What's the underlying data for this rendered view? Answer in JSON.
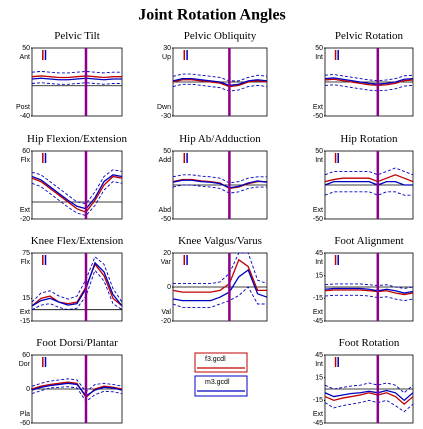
{
  "title": "Joint Rotation Angles",
  "chart_data": [
    {
      "type": "line",
      "title": "Pelvic Tilt",
      "ylabel_top": "Ant",
      "ylabel_bottom": "Post",
      "x": [
        0,
        10,
        20,
        30,
        40,
        50,
        60,
        70,
        80,
        90,
        100
      ],
      "xlim": [
        0,
        100
      ],
      "ylim": [
        -40,
        50
      ],
      "yticks": [
        -40,
        50
      ],
      "events": [
        {
          "x": 12,
          "color": "#c00000"
        },
        {
          "x": 15,
          "color": "#0000c0"
        }
      ],
      "vline": {
        "x": 60,
        "color": "#8b008b"
      },
      "series": [
        {
          "name": "f3.gcdl",
          "color": "#c00000",
          "values": [
            12,
            13,
            12,
            11,
            11,
            12,
            13,
            12,
            11,
            12,
            12
          ]
        },
        {
          "name": "m3.gcdl",
          "color": "#0000c0",
          "values": [
            9,
            10,
            9,
            8,
            8,
            9,
            10,
            9,
            8,
            9,
            9
          ]
        },
        {
          "color": "#0000c0",
          "dash": true,
          "values": [
            18,
            19,
            18,
            17,
            17,
            18,
            19,
            18,
            17,
            18,
            18
          ]
        },
        {
          "color": "#0000c0",
          "dash": true,
          "values": [
            3,
            4,
            3,
            2,
            2,
            3,
            4,
            3,
            2,
            3,
            3
          ]
        }
      ]
    },
    {
      "type": "line",
      "title": "Pelvic Obliquity",
      "ylabel_top": "Up",
      "ylabel_bottom": "Dwn",
      "x": [
        0,
        10,
        20,
        30,
        40,
        50,
        60,
        70,
        80,
        90,
        100
      ],
      "xlim": [
        0,
        100
      ],
      "ylim": [
        -30,
        30
      ],
      "yticks": [
        -30,
        30
      ],
      "events": [
        {
          "x": 12,
          "color": "#c00000"
        },
        {
          "x": 15,
          "color": "#0000c0"
        }
      ],
      "vline": {
        "x": 60,
        "color": "#8b008b"
      },
      "series": [
        {
          "color": "#c00000",
          "values": [
            0,
            2,
            2,
            1,
            0,
            -1,
            -4,
            -3,
            0,
            1,
            0
          ]
        },
        {
          "color": "#0000c0",
          "values": [
            1,
            3,
            3,
            2,
            1,
            0,
            -3,
            -2,
            1,
            2,
            1
          ]
        },
        {
          "color": "#0000c0",
          "dash": true,
          "values": [
            5,
            7,
            7,
            6,
            5,
            4,
            1,
            1,
            4,
            6,
            5
          ]
        },
        {
          "color": "#0000c0",
          "dash": true,
          "values": [
            -4,
            -2,
            -2,
            -3,
            -4,
            -5,
            -8,
            -7,
            -4,
            -3,
            -4
          ]
        }
      ]
    },
    {
      "type": "line",
      "title": "Pelvic Rotation",
      "ylabel_top": "Int",
      "ylabel_bottom": "Ext",
      "x": [
        0,
        10,
        20,
        30,
        40,
        50,
        60,
        70,
        80,
        90,
        100
      ],
      "xlim": [
        0,
        100
      ],
      "ylim": [
        -50,
        50
      ],
      "yticks": [
        -50,
        50
      ],
      "events": [
        {
          "x": 12,
          "color": "#c00000"
        },
        {
          "x": 15,
          "color": "#0000c0"
        }
      ],
      "vline": {
        "x": 60,
        "color": "#8b008b"
      },
      "series": [
        {
          "color": "#c00000",
          "values": [
            3,
            4,
            2,
            0,
            -2,
            -4,
            -5,
            -4,
            -2,
            2,
            3
          ]
        },
        {
          "color": "#0000c0",
          "values": [
            5,
            6,
            4,
            2,
            0,
            -2,
            -3,
            -2,
            0,
            4,
            5
          ]
        },
        {
          "color": "#0000c0",
          "dash": true,
          "values": [
            10,
            11,
            9,
            7,
            5,
            3,
            2,
            3,
            5,
            9,
            10
          ]
        },
        {
          "color": "#0000c0",
          "dash": true,
          "values": [
            -5,
            -4,
            -6,
            -8,
            -10,
            -12,
            -13,
            -12,
            -10,
            -6,
            -5
          ]
        }
      ]
    },
    {
      "type": "line",
      "title": "Hip Flexion/Extension",
      "ylabel_top": "Flx",
      "ylabel_bottom": "Ext",
      "x": [
        0,
        10,
        20,
        30,
        40,
        50,
        60,
        70,
        80,
        90,
        100
      ],
      "xlim": [
        0,
        100
      ],
      "ylim": [
        -20,
        60
      ],
      "yticks": [
        -20,
        60
      ],
      "events": [
        {
          "x": 12,
          "color": "#c00000"
        },
        {
          "x": 15,
          "color": "#0000c0"
        }
      ],
      "vline": {
        "x": 60,
        "color": "#8b008b"
      },
      "series": [
        {
          "color": "#c00000",
          "values": [
            28,
            24,
            16,
            8,
            0,
            -8,
            -12,
            2,
            20,
            30,
            28
          ]
        },
        {
          "color": "#0000c0",
          "values": [
            30,
            26,
            18,
            10,
            2,
            -5,
            -8,
            5,
            24,
            32,
            30
          ]
        },
        {
          "color": "#0000c0",
          "dash": true,
          "values": [
            35,
            32,
            24,
            16,
            8,
            0,
            -2,
            12,
            30,
            38,
            36
          ]
        },
        {
          "color": "#0000c0",
          "dash": true,
          "values": [
            22,
            18,
            10,
            2,
            -6,
            -13,
            -16,
            -4,
            14,
            24,
            22
          ]
        }
      ]
    },
    {
      "type": "line",
      "title": "Hip Ab/Adduction",
      "ylabel_top": "Add",
      "ylabel_bottom": "Abd",
      "x": [
        0,
        10,
        20,
        30,
        40,
        50,
        60,
        70,
        80,
        90,
        100
      ],
      "xlim": [
        0,
        100
      ],
      "ylim": [
        -50,
        50
      ],
      "yticks": [
        -50,
        50
      ],
      "events": [
        {
          "x": 12,
          "color": "#c00000"
        },
        {
          "x": 15,
          "color": "#0000c0"
        }
      ],
      "vline": {
        "x": 60,
        "color": "#8b008b"
      },
      "series": [
        {
          "color": "#c00000",
          "values": [
            5,
            8,
            8,
            6,
            5,
            3,
            -5,
            -3,
            2,
            5,
            5
          ]
        },
        {
          "color": "#0000c0",
          "values": [
            4,
            7,
            7,
            5,
            4,
            2,
            -4,
            -2,
            3,
            6,
            4
          ]
        },
        {
          "color": "#0000c0",
          "dash": true,
          "values": [
            12,
            15,
            15,
            13,
            12,
            10,
            3,
            5,
            10,
            12,
            12
          ]
        },
        {
          "color": "#0000c0",
          "dash": true,
          "values": [
            -3,
            0,
            0,
            -2,
            -3,
            -5,
            -12,
            -10,
            -5,
            -3,
            -3
          ]
        }
      ]
    },
    {
      "type": "line",
      "title": "Hip Rotation",
      "ylabel_top": "Int",
      "ylabel_bottom": "Ext",
      "x": [
        0,
        10,
        20,
        30,
        40,
        50,
        60,
        70,
        80,
        90,
        100
      ],
      "xlim": [
        0,
        100
      ],
      "ylim": [
        -50,
        50
      ],
      "yticks": [
        -50,
        50
      ],
      "events": [
        {
          "x": 12,
          "color": "#c00000"
        },
        {
          "x": 15,
          "color": "#0000c0"
        }
      ],
      "vline": {
        "x": 60,
        "color": "#8b008b"
      },
      "series": [
        {
          "color": "#c00000",
          "values": [
            5,
            8,
            10,
            10,
            10,
            10,
            5,
            10,
            15,
            10,
            5
          ]
        },
        {
          "color": "#0000c0",
          "values": [
            0,
            5,
            5,
            5,
            5,
            5,
            0,
            5,
            5,
            0,
            0
          ]
        },
        {
          "color": "#0000c0",
          "dash": true,
          "values": [
            15,
            20,
            20,
            20,
            20,
            20,
            15,
            20,
            25,
            20,
            15
          ]
        },
        {
          "color": "#0000c0",
          "dash": true,
          "values": [
            -15,
            -10,
            -10,
            -10,
            -10,
            -10,
            -15,
            -10,
            -10,
            -15,
            -15
          ]
        }
      ]
    },
    {
      "type": "line",
      "title": "Knee Flex/Extension",
      "ylabel_top": "Flx",
      "ylabel_bottom": "Ext",
      "x": [
        0,
        10,
        20,
        30,
        40,
        50,
        60,
        70,
        80,
        90,
        100
      ],
      "xlim": [
        0,
        100
      ],
      "ylim": [
        -15,
        75
      ],
      "yticks": [
        -15,
        15,
        75
      ],
      "events": [
        {
          "x": 12,
          "color": "#c00000"
        },
        {
          "x": 15,
          "color": "#0000c0"
        }
      ],
      "vline": {
        "x": 60,
        "color": "#8b008b"
      },
      "series": [
        {
          "color": "#c00000",
          "values": [
            5,
            15,
            18,
            10,
            8,
            10,
            30,
            60,
            45,
            15,
            5
          ]
        },
        {
          "color": "#0000c0",
          "values": [
            5,
            12,
            15,
            10,
            6,
            8,
            28,
            62,
            50,
            20,
            5
          ]
        },
        {
          "color": "#0000c0",
          "dash": true,
          "values": [
            10,
            22,
            25,
            18,
            14,
            18,
            40,
            70,
            60,
            28,
            10
          ]
        },
        {
          "color": "#0000c0",
          "dash": true,
          "values": [
            0,
            6,
            8,
            3,
            0,
            2,
            18,
            52,
            38,
            8,
            0
          ]
        }
      ]
    },
    {
      "type": "line",
      "title": "Knee Valgus/Varus",
      "ylabel_top": "Var",
      "ylabel_bottom": "Val",
      "x": [
        0,
        10,
        20,
        30,
        40,
        50,
        60,
        70,
        80,
        90,
        100
      ],
      "xlim": [
        0,
        100
      ],
      "ylim": [
        -20,
        20
      ],
      "yticks": [
        -20,
        0,
        20
      ],
      "events": [
        {
          "x": 12,
          "color": "#c00000"
        },
        {
          "x": 15,
          "color": "#0000c0"
        }
      ],
      "vline": {
        "x": 60,
        "color": "#8b008b"
      },
      "series": [
        {
          "color": "#c00000",
          "values": [
            -2,
            -3,
            -3,
            -3,
            -3,
            -2,
            2,
            16,
            12,
            -2,
            -2
          ]
        },
        {
          "color": "#0000c0",
          "values": [
            -7,
            -8,
            -8,
            -8,
            -8,
            -6,
            -3,
            6,
            10,
            -4,
            -6
          ]
        },
        {
          "color": "#0000c0",
          "dash": true,
          "values": [
            2,
            2,
            2,
            2,
            2,
            3,
            8,
            20,
            20,
            4,
            2
          ]
        },
        {
          "color": "#0000c0",
          "dash": true,
          "values": [
            -10,
            -12,
            -12,
            -12,
            -12,
            -10,
            -8,
            -5,
            0,
            -10,
            -10
          ]
        }
      ]
    },
    {
      "type": "line",
      "title": "Foot Alignment",
      "ylabel_top": "Int",
      "ylabel_bottom": "Ext",
      "x": [
        0,
        10,
        20,
        30,
        40,
        50,
        60,
        70,
        80,
        90,
        100
      ],
      "xlim": [
        0,
        100
      ],
      "ylim": [
        -45,
        45
      ],
      "yticks": [
        -45,
        -15,
        15,
        45
      ],
      "events": [
        {
          "x": 12,
          "color": "#c00000"
        },
        {
          "x": 15,
          "color": "#0000c0"
        }
      ],
      "vline": {
        "x": 60,
        "color": "#8b008b"
      },
      "series": [
        {
          "color": "#c00000",
          "values": [
            -5,
            -4,
            -4,
            -4,
            -4,
            -5,
            -6,
            -5,
            -8,
            -10,
            -8
          ]
        },
        {
          "color": "#0000c0",
          "values": [
            -3,
            -2,
            -2,
            -2,
            -2,
            -3,
            -5,
            -3,
            -5,
            -8,
            -6
          ]
        },
        {
          "color": "#0000c0",
          "dash": true,
          "values": [
            3,
            4,
            4,
            4,
            4,
            3,
            2,
            3,
            0,
            -2,
            0
          ]
        },
        {
          "color": "#0000c0",
          "dash": true,
          "values": [
            -12,
            -11,
            -11,
            -11,
            -11,
            -12,
            -14,
            -13,
            -16,
            -18,
            -16
          ]
        }
      ]
    },
    {
      "type": "line",
      "title": "Foot Dorsi/Plantar",
      "ylabel_top": "Dor",
      "ylabel_bottom": "Pla",
      "x": [
        0,
        10,
        20,
        30,
        40,
        50,
        60,
        70,
        80,
        90,
        100
      ],
      "xlim": [
        0,
        100
      ],
      "ylim": [
        -60,
        60
      ],
      "yticks": [
        -60,
        0,
        60
      ],
      "events": [
        {
          "x": 12,
          "color": "#c00000"
        },
        {
          "x": 15,
          "color": "#0000c0"
        }
      ],
      "vline": {
        "x": 60,
        "color": "#8b008b"
      },
      "series": [
        {
          "color": "#c00000",
          "values": [
            0,
            5,
            8,
            10,
            12,
            10,
            -15,
            0,
            5,
            3,
            0
          ]
        },
        {
          "color": "#0000c0",
          "values": [
            -2,
            3,
            6,
            8,
            10,
            8,
            -12,
            -2,
            3,
            2,
            -2
          ]
        },
        {
          "color": "#0000c0",
          "dash": true,
          "values": [
            5,
            10,
            14,
            16,
            18,
            16,
            -5,
            8,
            10,
            8,
            5
          ]
        },
        {
          "color": "#0000c0",
          "dash": true,
          "values": [
            -8,
            -3,
            2,
            3,
            4,
            2,
            -22,
            -10,
            -4,
            -5,
            -8
          ]
        }
      ]
    },
    {
      "type": "line",
      "title": "Foot Rotation",
      "ylabel_top": "Int",
      "ylabel_bottom": "Ext",
      "x": [
        0,
        10,
        20,
        30,
        40,
        50,
        60,
        70,
        80,
        90,
        100
      ],
      "xlim": [
        0,
        100
      ],
      "ylim": [
        -45,
        45
      ],
      "yticks": [
        -45,
        -15,
        15,
        45
      ],
      "events": [
        {
          "x": 12,
          "color": "#c00000"
        },
        {
          "x": 15,
          "color": "#0000c0"
        }
      ],
      "vline": {
        "x": 60,
        "color": "#8b008b"
      },
      "series": [
        {
          "color": "#c00000",
          "values": [
            -10,
            -15,
            -12,
            -10,
            -8,
            -5,
            -8,
            -5,
            -10,
            -20,
            -10
          ]
        },
        {
          "color": "#0000c0",
          "values": [
            -5,
            -10,
            -8,
            -6,
            -5,
            -3,
            -5,
            -2,
            -5,
            -15,
            -5
          ]
        },
        {
          "color": "#0000c0",
          "dash": true,
          "values": [
            5,
            0,
            2,
            4,
            5,
            8,
            5,
            8,
            5,
            -5,
            5
          ]
        },
        {
          "color": "#0000c0",
          "dash": true,
          "values": [
            -18,
            -25,
            -22,
            -20,
            -18,
            -15,
            -18,
            -15,
            -22,
            -30,
            -20
          ]
        }
      ]
    }
  ]
}
